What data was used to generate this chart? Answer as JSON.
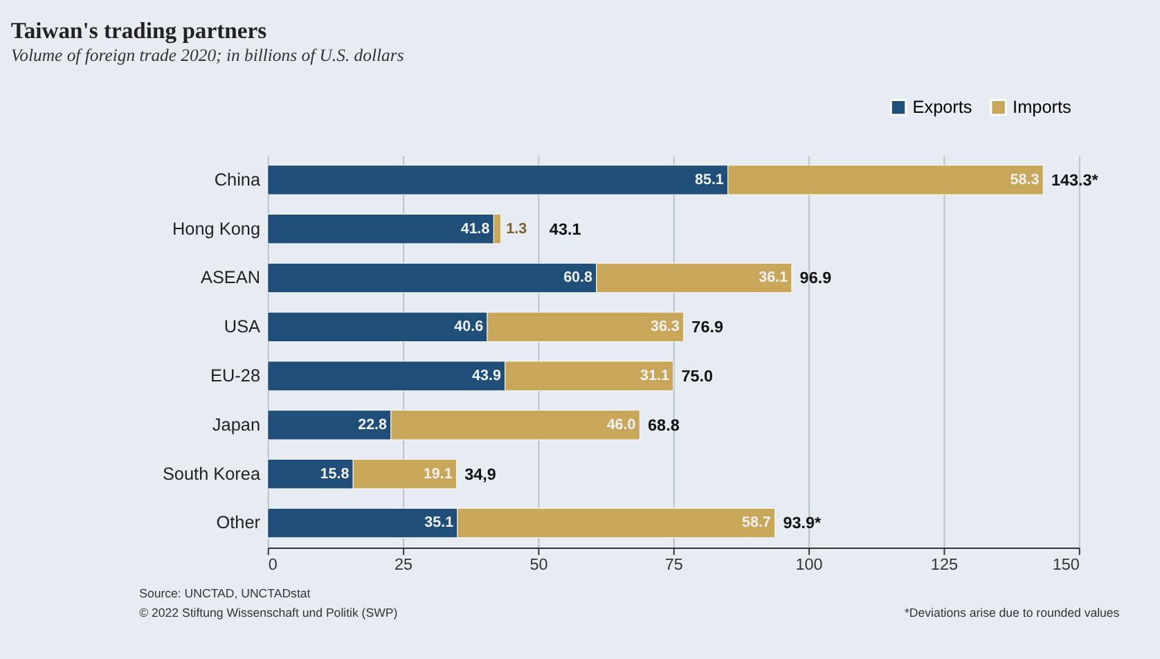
{
  "chart_data": {
    "type": "bar",
    "orientation": "horizontal",
    "stacked": true,
    "title": "Taiwan's trading partners",
    "subtitle": "Volume of foreign trade 2020; in billions of U.S. dollars",
    "categories": [
      "China",
      "Hong Kong",
      "ASEAN",
      "USA",
      "EU-28",
      "Japan",
      "South Korea",
      "Other"
    ],
    "series": [
      {
        "name": "Exports",
        "color": "#1f4e79",
        "values": [
          85.1,
          41.8,
          60.8,
          40.6,
          43.9,
          22.8,
          15.8,
          35.1
        ],
        "value_labels": [
          "85.1",
          "41.8",
          "60.8",
          "40.6",
          "43.9",
          "22.8",
          "15.8",
          "35.1"
        ]
      },
      {
        "name": "Imports",
        "color": "#c8a75a",
        "values": [
          58.3,
          1.3,
          36.1,
          36.3,
          31.1,
          46.0,
          19.1,
          58.7
        ],
        "value_labels": [
          "58.3",
          "1.3",
          "36.1",
          "36.3",
          "31.1",
          "46.0",
          "19.1",
          "58.7"
        ]
      }
    ],
    "totals": [
      "143.3*",
      "43.1",
      "96.9",
      "76.9",
      "75.0",
      "68.8",
      "34,9",
      "93.9*"
    ],
    "xlim": [
      0,
      150
    ],
    "xticks": [
      0,
      25,
      50,
      75,
      100,
      125,
      150
    ],
    "grid": "x",
    "legend": "top right",
    "annotations": [
      "Source: UNCTAD, UNCTADstat",
      "© 2022 Stiftung Wissenschaft und Politik (SWP)",
      "*Deviations arise due to rounded values"
    ]
  }
}
